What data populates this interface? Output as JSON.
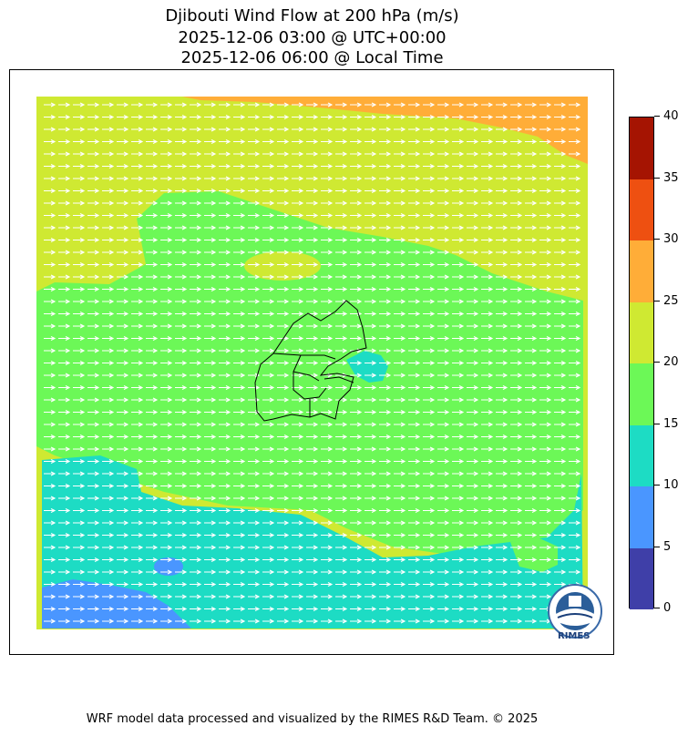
{
  "title": {
    "line1": "Djibouti Wind Flow at 200 hPa (m/s)",
    "line2": "2025-12-06 03:00 @ UTC+00:00",
    "line3": "2025-12-06 06:00 @ Local Time"
  },
  "colorbar": {
    "levels": [
      0,
      5,
      10,
      15,
      20,
      25,
      30,
      35,
      40
    ],
    "labels": [
      "0",
      "5",
      "10",
      "15",
      "20",
      "25",
      "30",
      "35",
      "40"
    ],
    "colors": [
      "#3f3fa8",
      "#4a96ff",
      "#1ddcc4",
      "#6cf857",
      "#cfe932",
      "#ffad38",
      "#ee5011",
      "#a51402"
    ]
  },
  "map": {
    "region": "Djibouti",
    "wind_direction": "west-to-east",
    "field_colors": {
      "orange": "#ffad38",
      "yellow": "#cfe932",
      "green": "#6cf857",
      "teal": "#1ddcc4",
      "blue": "#4a96ff"
    }
  },
  "logo": {
    "text": "RIMES"
  },
  "footer": {
    "text": "WRF model data processed and visualized by the RIMES R&D Team. © 2025"
  }
}
